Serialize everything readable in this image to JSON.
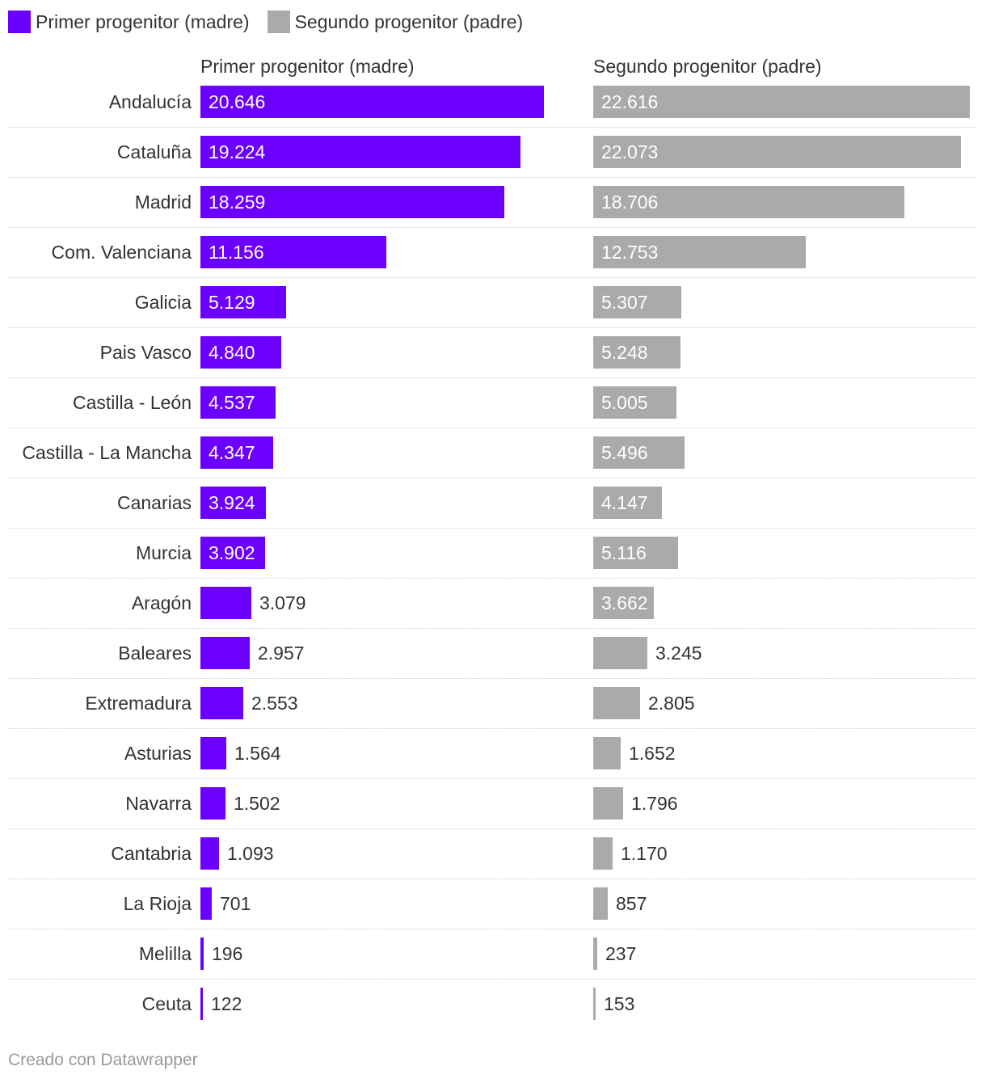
{
  "legend": [
    {
      "label": "Primer progenitor (madre)",
      "color": "#6c00ff"
    },
    {
      "label": "Segundo progenitor (padre)",
      "color": "#aaaaaa"
    }
  ],
  "chart_data": {
    "type": "bar",
    "orientation": "horizontal",
    "layout": "split-columns",
    "categories": [
      "Andalucía",
      "Cataluña",
      "Madrid",
      "Com. Valenciana",
      "Galicia",
      "Pais Vasco",
      "Castilla - León",
      "Castilla - La Mancha",
      "Canarias",
      "Murcia",
      "Aragón",
      "Baleares",
      "Extremadura",
      "Asturias",
      "Navarra",
      "Cantabria",
      "La Rioja",
      "Melilla",
      "Ceuta"
    ],
    "series": [
      {
        "name": "Primer progenitor (madre)",
        "color": "#6c00ff",
        "values": [
          20646,
          19224,
          18259,
          11156,
          5129,
          4840,
          4537,
          4347,
          3924,
          3902,
          3079,
          2957,
          2553,
          1564,
          1502,
          1093,
          701,
          196,
          122
        ],
        "labels": [
          "20.646",
          "19.224",
          "18.259",
          "11.156",
          "5.129",
          "4.840",
          "4.537",
          "4.347",
          "3.924",
          "3.902",
          "3.079",
          "2.957",
          "2.553",
          "1.564",
          "1.502",
          "1.093",
          "701",
          "196",
          "122"
        ]
      },
      {
        "name": "Segundo progenitor (padre)",
        "color": "#aaaaaa",
        "values": [
          22616,
          22073,
          18706,
          12753,
          5307,
          5248,
          5005,
          5496,
          4147,
          5116,
          3662,
          3245,
          2805,
          1652,
          1796,
          1170,
          857,
          237,
          153
        ],
        "labels": [
          "22.616",
          "22.073",
          "18.706",
          "12.753",
          "5.307",
          "5.248",
          "5.005",
          "5.496",
          "4.147",
          "5.116",
          "3.662",
          "3.245",
          "2.805",
          "1.652",
          "1.796",
          "1.170",
          "857",
          "237",
          "153"
        ]
      }
    ],
    "xlim": [
      0,
      22616
    ],
    "grid": false,
    "legend_position": "top-left"
  },
  "footer": {
    "text": "Creado con Datawrapper"
  }
}
